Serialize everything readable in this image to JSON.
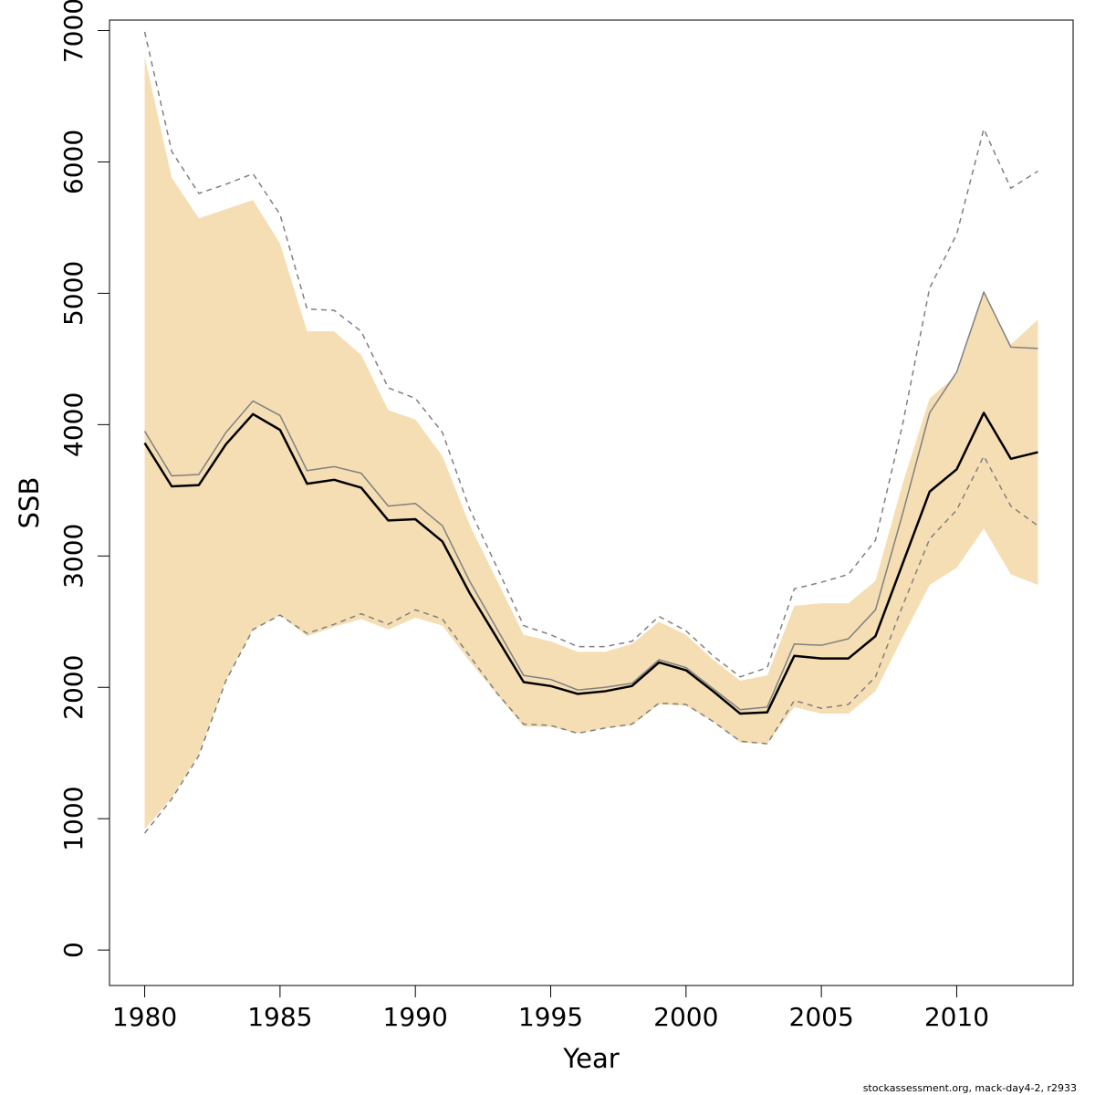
{
  "chart_data": {
    "type": "line",
    "xlabel": "Year",
    "ylabel": "SSB",
    "xlim": [
      1978.7,
      2014.3
    ],
    "ylim": [
      -270,
      7080
    ],
    "x_ticks": [
      1980,
      1985,
      1990,
      1995,
      2000,
      2005,
      2010
    ],
    "y_ticks": [
      0,
      1000,
      2000,
      3000,
      4000,
      5000,
      6000,
      7000
    ],
    "grid": false,
    "legend": "none",
    "x": [
      1980,
      1981,
      1982,
      1983,
      1984,
      1985,
      1986,
      1987,
      1988,
      1989,
      1990,
      1991,
      1992,
      1993,
      1994,
      1995,
      1996,
      1997,
      1998,
      1999,
      2000,
      2001,
      2002,
      2003,
      2004,
      2005,
      2006,
      2007,
      2008,
      2009,
      2010,
      2011,
      2012,
      2013
    ],
    "band": {
      "upper": [
        6800,
        5880,
        5570,
        5640,
        5710,
        5380,
        4710,
        4710,
        4530,
        4110,
        4040,
        3760,
        3240,
        2820,
        2400,
        2350,
        2270,
        2270,
        2330,
        2500,
        2400,
        2210,
        2050,
        2090,
        2620,
        2640,
        2640,
        2810,
        3550,
        4200,
        4380,
        5000,
        4610,
        4800
      ],
      "lower": [
        920,
        1160,
        1490,
        2050,
        2440,
        2550,
        2390,
        2460,
        2520,
        2440,
        2530,
        2470,
        2200,
        1950,
        1700,
        1700,
        1650,
        1690,
        1710,
        1870,
        1860,
        1740,
        1580,
        1570,
        1850,
        1800,
        1800,
        1970,
        2380,
        2780,
        2910,
        3210,
        2860,
        2780
      ]
    },
    "series": [
      {
        "name": "",
        "style": "solid-black",
        "values": [
          3860,
          3530,
          3540,
          3850,
          4080,
          3960,
          3550,
          3580,
          3520,
          3270,
          3280,
          3110,
          2720,
          2380,
          2040,
          2010,
          1950,
          1970,
          2010,
          2190,
          2130,
          1970,
          1800,
          1810,
          2240,
          2220,
          2220,
          2390,
          2940,
          3490,
          3660,
          4090,
          3740,
          3790
        ]
      },
      {
        "name": "",
        "style": "solid-grey",
        "values": [
          3950,
          3610,
          3620,
          3940,
          4180,
          4070,
          3650,
          3680,
          3630,
          3380,
          3400,
          3230,
          2810,
          2450,
          2090,
          2060,
          1980,
          2000,
          2030,
          2210,
          2150,
          1990,
          1830,
          1850,
          2330,
          2320,
          2370,
          2590,
          3320,
          4090,
          4400,
          5010,
          4590,
          4580
        ]
      },
      {
        "name": "",
        "style": "dashed-upper",
        "values": [
          6990,
          6080,
          5760,
          5830,
          5910,
          5600,
          4880,
          4870,
          4710,
          4280,
          4200,
          3940,
          3360,
          2920,
          2470,
          2400,
          2310,
          2310,
          2350,
          2540,
          2430,
          2240,
          2080,
          2150,
          2750,
          2800,
          2860,
          3120,
          4000,
          5040,
          5450,
          6250,
          5800,
          5930
        ]
      },
      {
        "name": "",
        "style": "dashed-lower",
        "values": [
          890,
          1150,
          1480,
          2050,
          2440,
          2550,
          2410,
          2480,
          2560,
          2480,
          2590,
          2520,
          2240,
          1960,
          1720,
          1710,
          1650,
          1690,
          1720,
          1880,
          1870,
          1740,
          1590,
          1570,
          1900,
          1840,
          1870,
          2080,
          2620,
          3130,
          3350,
          3760,
          3380,
          3230
        ]
      }
    ],
    "colors": {
      "band": "#f5deb3",
      "main_line": "#000000",
      "grey_line": "#808080",
      "dashed_line": "#808080"
    }
  },
  "footer": {
    "text": "stockassessment.org, mack-day4-2, r2933"
  }
}
